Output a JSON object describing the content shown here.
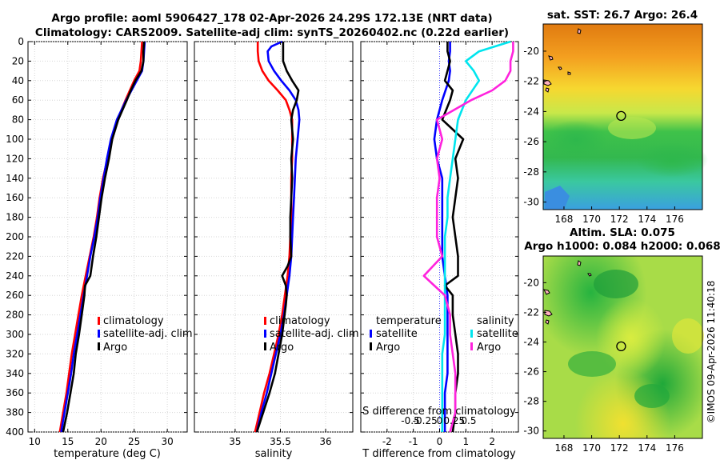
{
  "titles": {
    "line1": "Argo profile: aoml 5906427_178 02-Apr-2026 24.29S 172.13E (NRT data)",
    "line2": "Climatology: CARS2009. Satellite-adj clim: synTS_20260402.nc (0.22d earlier)"
  },
  "credit": "©IMOS 09-Apr-2026 11:40:18",
  "colors": {
    "climatology": "#ff0000",
    "satellite": "#0000ff",
    "argo": "#000000",
    "sal_satellite": "#00e5ee",
    "sal_argo": "#ff22dd"
  },
  "chart_data": [
    {
      "name": "temperature",
      "type": "line",
      "xlabel": "temperature (deg C)",
      "ylabel": "",
      "xlim": [
        9,
        33
      ],
      "ylim": [
        0,
        400
      ],
      "xticks": [
        10,
        15,
        20,
        25,
        30
      ],
      "yticks": [
        0,
        20,
        40,
        60,
        80,
        100,
        120,
        140,
        160,
        180,
        200,
        220,
        240,
        260,
        280,
        300,
        320,
        340,
        360,
        380,
        400
      ],
      "legend": [
        "climatology",
        "satellite-adj. clim",
        "Argo"
      ],
      "legend_position": "lower-right",
      "series": [
        {
          "name": "climatology",
          "color": "#ff0000",
          "depth": [
            0,
            10,
            20,
            30,
            40,
            60,
            80,
            100,
            120,
            140,
            160,
            180,
            200,
            220,
            240,
            260,
            280,
            300,
            320,
            340,
            360,
            380,
            400
          ],
          "values": [
            26.2,
            26.1,
            26.0,
            25.8,
            25.0,
            23.7,
            22.5,
            21.7,
            21.0,
            20.3,
            19.8,
            19.4,
            18.9,
            18.3,
            17.7,
            17.1,
            16.6,
            16.1,
            15.6,
            15.2,
            14.8,
            14.3,
            13.8
          ]
        },
        {
          "name": "satellite-adj. clim",
          "color": "#0000ff",
          "depth": [
            0,
            10,
            20,
            30,
            40,
            60,
            80,
            100,
            120,
            140,
            160,
            180,
            200,
            220,
            240,
            260,
            280,
            300,
            320,
            340,
            360,
            380,
            400
          ],
          "values": [
            26.6,
            26.5,
            26.4,
            26.2,
            25.4,
            23.8,
            22.4,
            21.5,
            20.9,
            20.4,
            19.9,
            19.5,
            19.0,
            18.4,
            17.9,
            17.4,
            16.9,
            16.4,
            15.9,
            15.5,
            15.0,
            14.5,
            14.0
          ]
        },
        {
          "name": "Argo",
          "color": "#000000",
          "depth": [
            0,
            10,
            20,
            30,
            40,
            50,
            60,
            80,
            100,
            120,
            140,
            160,
            180,
            200,
            220,
            240,
            250,
            260,
            280,
            300,
            320,
            340,
            360,
            380,
            400
          ],
          "values": [
            26.5,
            26.4,
            26.4,
            26.1,
            25.2,
            24.5,
            23.9,
            22.6,
            21.7,
            21.2,
            20.6,
            20.1,
            19.7,
            19.3,
            18.8,
            18.4,
            17.6,
            17.5,
            17.1,
            16.7,
            16.2,
            15.9,
            15.4,
            14.9,
            14.3
          ]
        }
      ]
    },
    {
      "name": "salinity",
      "type": "line",
      "xlabel": "salinity",
      "ylabel": "",
      "xlim": [
        34.55,
        36.3
      ],
      "ylim": [
        0,
        400
      ],
      "xticks": [
        35,
        35.5,
        36
      ],
      "legend": [
        "climatology",
        "satellite-adj. clim",
        "Argo"
      ],
      "legend_position": "lower-right",
      "series": [
        {
          "name": "climatology",
          "color": "#ff0000",
          "depth": [
            0,
            10,
            20,
            30,
            40,
            50,
            60,
            70,
            80,
            100,
            120,
            140,
            160,
            180,
            200,
            220,
            240,
            260,
            280,
            300,
            320,
            340,
            360,
            380,
            400
          ],
          "values": [
            35.25,
            35.25,
            35.26,
            35.3,
            35.37,
            35.47,
            35.56,
            35.6,
            35.63,
            35.63,
            35.63,
            35.62,
            35.62,
            35.62,
            35.61,
            35.6,
            35.58,
            35.55,
            35.52,
            35.48,
            35.43,
            35.38,
            35.32,
            35.27,
            35.22
          ]
        },
        {
          "name": "satellite-adj. clim",
          "color": "#0000ff",
          "depth": [
            0,
            5,
            10,
            20,
            30,
            40,
            50,
            60,
            70,
            80,
            100,
            120,
            140,
            160,
            180,
            200,
            220,
            240,
            260,
            280,
            300,
            320,
            340,
            360,
            380,
            400
          ],
          "values": [
            35.52,
            35.4,
            35.36,
            35.37,
            35.43,
            35.51,
            35.6,
            35.67,
            35.7,
            35.71,
            35.69,
            35.67,
            35.66,
            35.65,
            35.64,
            35.63,
            35.62,
            35.6,
            35.57,
            35.54,
            35.5,
            35.45,
            35.4,
            35.35,
            35.29,
            35.24
          ]
        },
        {
          "name": "Argo",
          "color": "#000000",
          "depth": [
            0,
            10,
            20,
            30,
            40,
            50,
            60,
            70,
            80,
            100,
            120,
            140,
            160,
            180,
            200,
            220,
            230,
            240,
            250,
            260,
            270,
            300,
            340,
            360,
            380,
            400
          ],
          "values": [
            35.53,
            35.53,
            35.53,
            35.57,
            35.63,
            35.7,
            35.68,
            35.64,
            35.62,
            35.64,
            35.62,
            35.63,
            35.62,
            35.61,
            35.61,
            35.62,
            35.58,
            35.52,
            35.56,
            35.57,
            35.56,
            35.52,
            35.44,
            35.38,
            35.31,
            35.24
          ]
        }
      ]
    },
    {
      "name": "difference",
      "type": "line",
      "xlabel": "T difference from climatology",
      "xlabel_top": "S difference from climatology",
      "xlim": [
        -3,
        3
      ],
      "ylim": [
        0,
        400
      ],
      "xticks": [
        -2,
        -1,
        0,
        1,
        2
      ],
      "xticks_top": [
        -0.5,
        -0.25,
        0,
        0.25,
        0.5
      ],
      "xticks_top_labels": [
        "-0.5",
        "-0.25",
        "0",
        "0.25",
        "0.5"
      ],
      "legend_temperature": {
        "title": "temperature",
        "entries": [
          "satellite",
          "Argo"
        ]
      },
      "legend_salinity": {
        "title": "salinity",
        "entries": [
          "satellite",
          "Argo"
        ]
      },
      "legend_position": "lower-center",
      "series": [
        {
          "name": "T satellite",
          "color": "#0000ff",
          "depth": [
            0,
            10,
            20,
            30,
            40,
            60,
            80,
            100,
            120,
            140,
            160,
            180,
            200,
            220,
            240,
            260,
            280,
            300,
            320,
            340,
            360,
            380,
            400
          ],
          "values": [
            0.4,
            0.4,
            0.35,
            0.4,
            0.35,
            0.1,
            -0.1,
            -0.2,
            -0.1,
            0.1,
            0.1,
            0.1,
            0.1,
            0.1,
            0.2,
            0.3,
            0.3,
            0.3,
            0.3,
            0.3,
            0.2,
            0.2,
            0.2
          ]
        },
        {
          "name": "T Argo",
          "color": "#000000",
          "depth": [
            0,
            10,
            20,
            30,
            40,
            50,
            60,
            80,
            100,
            120,
            140,
            160,
            180,
            200,
            220,
            240,
            250,
            260,
            280,
            300,
            320,
            340,
            360,
            380,
            400
          ],
          "values": [
            0.3,
            0.3,
            0.4,
            0.3,
            0.2,
            0.5,
            0.4,
            0.1,
            0.9,
            0.6,
            0.7,
            0.6,
            0.5,
            0.6,
            0.7,
            0.7,
            0.2,
            0.5,
            0.5,
            0.6,
            0.7,
            0.7,
            0.6,
            0.6,
            0.5
          ]
        },
        {
          "name": "S satellite",
          "color": "#00e5ee",
          "depth": [
            0,
            10,
            20,
            30,
            40,
            60,
            80,
            100,
            120,
            140,
            160,
            180,
            200,
            220,
            240,
            260,
            280,
            300,
            320,
            340,
            360,
            380,
            400
          ],
          "values": [
            0.27,
            0.15,
            0.1,
            0.13,
            0.15,
            0.1,
            0.07,
            0.06,
            0.05,
            0.04,
            0.03,
            0.03,
            0.02,
            0.02,
            0.02,
            0.02,
            0.02,
            0.02,
            0.01,
            0.01,
            0.01,
            0.01,
            0.01
          ]
        },
        {
          "name": "S Argo",
          "color": "#ff22dd",
          "depth": [
            0,
            10,
            20,
            30,
            40,
            50,
            60,
            80,
            100,
            120,
            140,
            160,
            180,
            200,
            220,
            240,
            250,
            260,
            280,
            300,
            320,
            340,
            360,
            380,
            400
          ],
          "values": [
            0.28,
            0.28,
            0.27,
            0.27,
            0.25,
            0.2,
            0.12,
            -0.01,
            0.01,
            -0.01,
            0.0,
            -0.01,
            -0.01,
            -0.01,
            0.01,
            -0.06,
            -0.02,
            0.02,
            0.04,
            0.04,
            0.05,
            0.06,
            0.06,
            0.06,
            0.04
          ]
        }
      ]
    },
    {
      "name": "sst_map",
      "type": "heatmap",
      "title": "sat. SST: 26.7 Argo: 26.4",
      "xlim": [
        166.5,
        178
      ],
      "ylim": [
        -30.5,
        -18.2
      ],
      "xticks": [
        168,
        170,
        172,
        174,
        176
      ],
      "yticks": [
        -20,
        -22,
        -24,
        -26,
        -28,
        -30
      ],
      "marker": {
        "lon": 172.13,
        "lat": -24.29
      }
    },
    {
      "name": "sla_map",
      "type": "heatmap",
      "title_line1": "Altim. SLA: 0.075",
      "title_line2": "Argo h1000: 0.084 h2000: 0.068",
      "xlim": [
        166.5,
        178
      ],
      "ylim": [
        -30.5,
        -18.2
      ],
      "xticks": [
        168,
        170,
        172,
        174,
        176
      ],
      "yticks": [
        -20,
        -22,
        -24,
        -26,
        -28,
        -30
      ],
      "marker": {
        "lon": 172.13,
        "lat": -24.29
      }
    }
  ]
}
